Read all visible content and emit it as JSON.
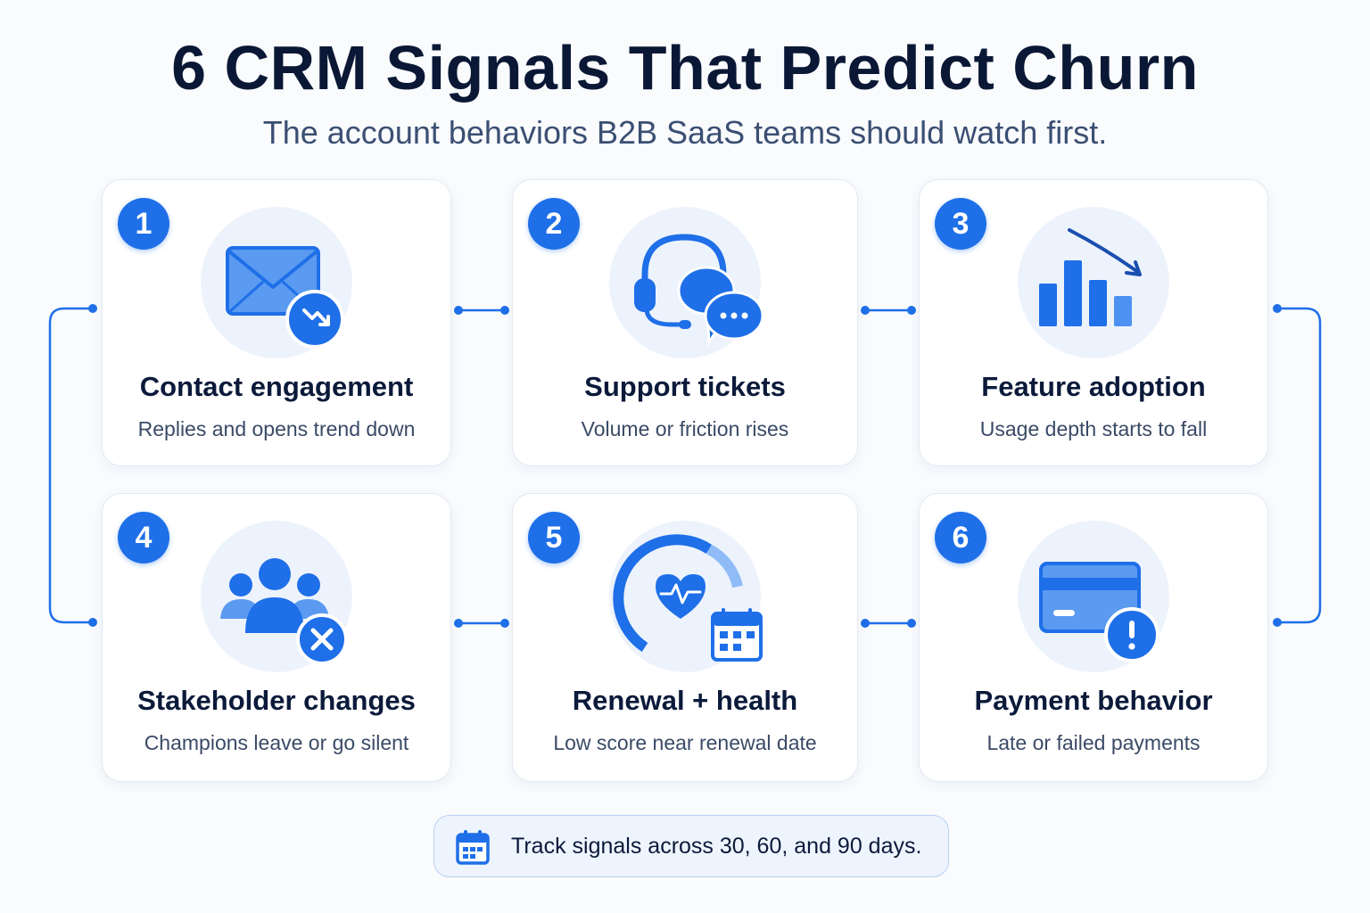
{
  "header": {
    "title": "6 CRM Signals That Predict Churn",
    "subtitle": "The account behaviors B2B SaaS teams should watch first."
  },
  "colors": {
    "accent": "#1e6fe8",
    "accent_light": "#5a9af0",
    "icon_bg": "#edf3fc",
    "title": "#0a1735",
    "text": "#3a4a66"
  },
  "cards": [
    {
      "number": "1",
      "title": "Contact engagement",
      "description": "Replies and opens trend down",
      "icon": "email-trend-down-icon"
    },
    {
      "number": "2",
      "title": "Support tickets",
      "description": "Volume or friction rises",
      "icon": "headset-chat-icon"
    },
    {
      "number": "3",
      "title": "Feature adoption",
      "description": "Usage depth starts to fall",
      "icon": "bar-chart-decline-icon"
    },
    {
      "number": "4",
      "title": "Stakeholder changes",
      "description": "Champions leave or go silent",
      "icon": "users-remove-icon"
    },
    {
      "number": "5",
      "title": "Renewal + health",
      "description": "Low score near renewal date",
      "icon": "health-gauge-calendar-icon"
    },
    {
      "number": "6",
      "title": "Payment behavior",
      "description": "Late or failed payments",
      "icon": "credit-card-alert-icon"
    }
  ],
  "footer": {
    "text": "Track signals across 30, 60, and 90 days.",
    "icon": "calendar-icon"
  }
}
